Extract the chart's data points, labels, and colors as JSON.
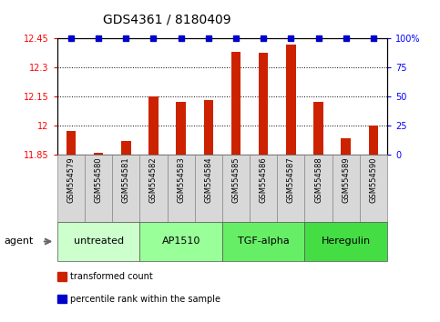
{
  "title": "GDS4361 / 8180409",
  "samples": [
    "GSM554579",
    "GSM554580",
    "GSM554581",
    "GSM554582",
    "GSM554583",
    "GSM554584",
    "GSM554585",
    "GSM554586",
    "GSM554587",
    "GSM554588",
    "GSM554589",
    "GSM554590"
  ],
  "bar_values": [
    11.97,
    11.857,
    11.92,
    12.15,
    12.125,
    12.13,
    12.38,
    12.375,
    12.42,
    12.125,
    11.935,
    12.0
  ],
  "percentile_values": [
    100,
    100,
    100,
    100,
    100,
    100,
    100,
    100,
    100,
    100,
    100,
    100
  ],
  "bar_color": "#cc2200",
  "percentile_color": "#0000cc",
  "ylim_left": [
    11.85,
    12.45
  ],
  "ylim_right": [
    0,
    100
  ],
  "yticks_left": [
    11.85,
    12.0,
    12.15,
    12.3,
    12.45
  ],
  "ytick_labels_left": [
    "11.85",
    "12",
    "12.15",
    "12.3",
    "12.45"
  ],
  "yticks_right": [
    0,
    25,
    50,
    75,
    100
  ],
  "ytick_labels_right": [
    "0",
    "25",
    "50",
    "75",
    "100%"
  ],
  "groups": [
    {
      "label": "untreated",
      "start": 0,
      "end": 3,
      "color": "#ccffcc"
    },
    {
      "label": "AP1510",
      "start": 3,
      "end": 6,
      "color": "#99ff99"
    },
    {
      "label": "TGF-alpha",
      "start": 6,
      "end": 9,
      "color": "#66ee66"
    },
    {
      "label": "Heregulin",
      "start": 9,
      "end": 12,
      "color": "#44dd44"
    }
  ],
  "agent_label": "agent",
  "legend_items": [
    {
      "label": "transformed count",
      "color": "#cc2200"
    },
    {
      "label": "percentile rank within the sample",
      "color": "#0000cc"
    }
  ],
  "background_color": "#ffffff",
  "bar_width": 0.35,
  "sample_box_color": "#d8d8d8",
  "title_fontsize": 10,
  "axis_fontsize": 7,
  "sample_fontsize": 6,
  "group_fontsize": 8,
  "legend_fontsize": 7
}
